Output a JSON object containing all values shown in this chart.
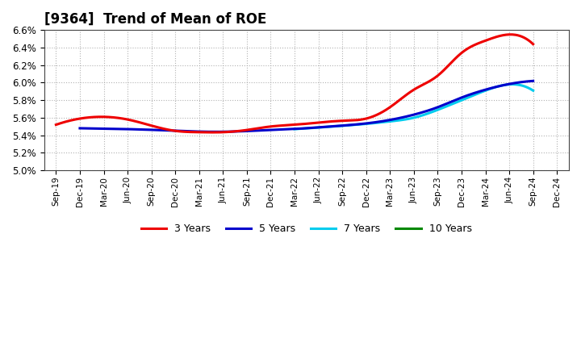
{
  "title": "[9364]  Trend of Mean of ROE",
  "background_color": "#ffffff",
  "grid_color": "#aaaaaa",
  "ylim": [
    0.05,
    0.066
  ],
  "yticks": [
    0.05,
    0.052,
    0.054,
    0.056,
    0.058,
    0.06,
    0.062,
    0.064,
    0.066
  ],
  "x_labels": [
    "Sep-19",
    "Dec-19",
    "Mar-20",
    "Jun-20",
    "Sep-20",
    "Dec-20",
    "Mar-21",
    "Jun-21",
    "Sep-21",
    "Dec-21",
    "Mar-22",
    "Jun-22",
    "Sep-22",
    "Dec-22",
    "Mar-23",
    "Jun-23",
    "Sep-23",
    "Dec-23",
    "Mar-24",
    "Jun-24",
    "Sep-24",
    "Dec-24"
  ],
  "series_3yr": {
    "color": "#ee0000",
    "label": "3 Years",
    "x_indices": [
      0,
      1,
      2,
      3,
      4,
      5,
      6,
      7,
      8,
      9,
      10,
      11,
      12,
      13,
      14,
      15,
      16,
      17,
      18,
      19,
      20
    ],
    "values": [
      0.0552,
      0.0559,
      0.0561,
      0.0558,
      0.0551,
      0.0545,
      0.05435,
      0.05435,
      0.0546,
      0.055,
      0.0552,
      0.05545,
      0.05565,
      0.0559,
      0.0572,
      0.0592,
      0.0608,
      0.0634,
      0.0648,
      0.0655,
      0.0644
    ]
  },
  "series_5yr": {
    "color": "#0000cc",
    "label": "5 Years",
    "x_indices": [
      1,
      2,
      3,
      4,
      5,
      6,
      7,
      8,
      9,
      10,
      11,
      12,
      13,
      14,
      15,
      16,
      17,
      18,
      19,
      20
    ],
    "values": [
      0.0548,
      0.05475,
      0.0547,
      0.05462,
      0.05452,
      0.05442,
      0.0544,
      0.05448,
      0.0546,
      0.05472,
      0.0549,
      0.0551,
      0.05535,
      0.05575,
      0.05635,
      0.0572,
      0.0583,
      0.0592,
      0.05985,
      0.0602
    ]
  },
  "series_7yr": {
    "color": "#00ccee",
    "label": "7 Years",
    "x_indices": [
      10,
      11,
      12,
      13,
      14,
      15,
      16,
      17,
      18,
      19,
      20
    ],
    "values": [
      0.0547,
      0.05488,
      0.05508,
      0.0553,
      0.05558,
      0.056,
      0.0569,
      0.058,
      0.0591,
      0.0598,
      0.0591
    ]
  },
  "series_10yr": {
    "color": "#008800",
    "label": "10 Years",
    "x_indices": [],
    "values": []
  },
  "legend_colors": [
    "#ee0000",
    "#0000cc",
    "#00ccee",
    "#008800"
  ],
  "legend_labels": [
    "3 Years",
    "5 Years",
    "7 Years",
    "10 Years"
  ]
}
